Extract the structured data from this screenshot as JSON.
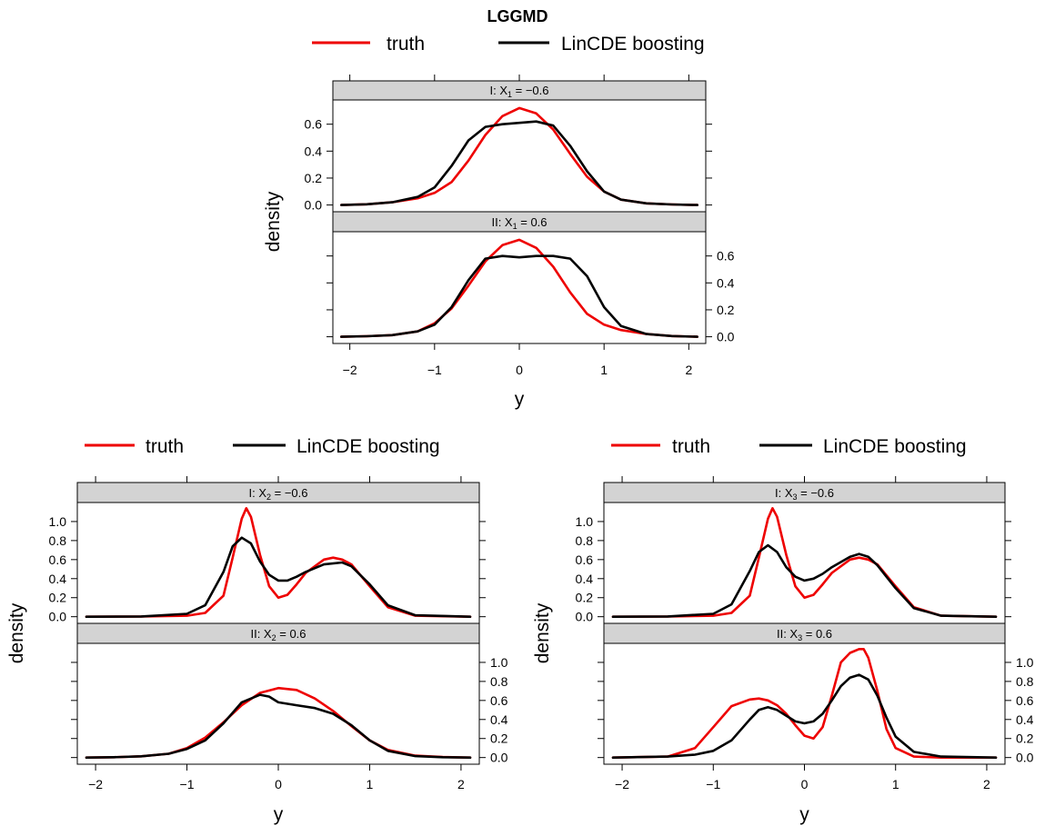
{
  "title": "LGGMD",
  "legend": {
    "truth_label": "truth",
    "lincde_label": "LinCDE boosting"
  },
  "colors": {
    "truth": "#ee0000",
    "lincde": "#000000",
    "strip": "#d3d3d3"
  },
  "chart_data": [
    {
      "type": "line",
      "xlabel": "y",
      "ylabel": "density",
      "xlim": [
        -2.2,
        2.2
      ],
      "x_ticks": [
        -2,
        -1,
        0,
        1,
        2
      ],
      "x_tick_labels": [
        "−2",
        "−1",
        "0",
        "1",
        "2"
      ],
      "y_ticks": [
        0.0,
        0.2,
        0.4,
        0.6
      ],
      "y_tick_labels": [
        "0.0",
        "0.2",
        "0.4",
        "0.6"
      ],
      "ylim": [
        -0.05,
        0.78
      ],
      "legend": [
        "truth",
        "LinCDE boosting"
      ],
      "panels": [
        {
          "strip": {
            "prefix": "I: X",
            "sub": "1",
            "suffix": " = −0.6"
          },
          "series": [
            {
              "name": "truth",
              "x": [
                -2.1,
                -1.8,
                -1.5,
                -1.2,
                -1.0,
                -0.8,
                -0.6,
                -0.4,
                -0.2,
                0.0,
                0.2,
                0.4,
                0.6,
                0.8,
                1.0,
                1.2,
                1.5,
                1.8,
                2.1
              ],
              "y": [
                0.0,
                0.005,
                0.02,
                0.05,
                0.09,
                0.17,
                0.33,
                0.52,
                0.66,
                0.72,
                0.68,
                0.56,
                0.38,
                0.21,
                0.1,
                0.04,
                0.012,
                0.004,
                0.0
              ]
            },
            {
              "name": "LinCDE boosting",
              "x": [
                -2.1,
                -1.8,
                -1.5,
                -1.2,
                -1.0,
                -0.8,
                -0.6,
                -0.4,
                -0.2,
                0.0,
                0.2,
                0.4,
                0.6,
                0.8,
                1.0,
                1.2,
                1.5,
                1.8,
                2.1
              ],
              "y": [
                0.0,
                0.005,
                0.02,
                0.06,
                0.13,
                0.29,
                0.48,
                0.58,
                0.6,
                0.61,
                0.62,
                0.59,
                0.44,
                0.25,
                0.1,
                0.04,
                0.012,
                0.004,
                0.0
              ]
            }
          ]
        },
        {
          "strip": {
            "prefix": "II: X",
            "sub": "1",
            "suffix": " = 0.6"
          },
          "series": [
            {
              "name": "truth",
              "x": [
                -2.1,
                -1.8,
                -1.5,
                -1.2,
                -1.0,
                -0.8,
                -0.6,
                -0.4,
                -0.2,
                0.0,
                0.2,
                0.4,
                0.6,
                0.8,
                1.0,
                1.2,
                1.5,
                1.8,
                2.1
              ],
              "y": [
                0.0,
                0.004,
                0.012,
                0.04,
                0.1,
                0.21,
                0.38,
                0.56,
                0.68,
                0.72,
                0.66,
                0.52,
                0.33,
                0.17,
                0.09,
                0.05,
                0.02,
                0.005,
                0.0
              ]
            },
            {
              "name": "LinCDE boosting",
              "x": [
                -2.1,
                -1.8,
                -1.5,
                -1.2,
                -1.0,
                -0.8,
                -0.6,
                -0.4,
                -0.2,
                0.0,
                0.2,
                0.4,
                0.6,
                0.8,
                1.0,
                1.2,
                1.5,
                1.8,
                2.1
              ],
              "y": [
                0.0,
                0.004,
                0.012,
                0.04,
                0.09,
                0.22,
                0.42,
                0.58,
                0.6,
                0.59,
                0.6,
                0.6,
                0.58,
                0.45,
                0.22,
                0.08,
                0.02,
                0.005,
                0.0
              ]
            }
          ]
        }
      ]
    },
    {
      "type": "line",
      "xlabel": "y",
      "ylabel": "density",
      "xlim": [
        -2.2,
        2.2
      ],
      "x_ticks": [
        -2,
        -1,
        0,
        1,
        2
      ],
      "x_tick_labels": [
        "−2",
        "−1",
        "0",
        "1",
        "2"
      ],
      "y_ticks": [
        0.0,
        0.2,
        0.4,
        0.6,
        0.8,
        1.0
      ],
      "y_tick_labels": [
        "0.0",
        "0.2",
        "0.4",
        "0.6",
        "0.8",
        "1.0"
      ],
      "ylim": [
        -0.07,
        1.2
      ],
      "legend": [
        "truth",
        "LinCDE boosting"
      ],
      "panels": [
        {
          "strip": {
            "prefix": "I: X",
            "sub": "2",
            "suffix": " = −0.6"
          },
          "series": [
            {
              "name": "truth",
              "x": [
                -2.1,
                -1.5,
                -1.0,
                -0.8,
                -0.6,
                -0.5,
                -0.4,
                -0.35,
                -0.3,
                -0.2,
                -0.1,
                0.0,
                0.1,
                0.2,
                0.3,
                0.5,
                0.6,
                0.7,
                0.8,
                1.0,
                1.2,
                1.5,
                2.1
              ],
              "y": [
                0.0,
                0.002,
                0.01,
                0.04,
                0.22,
                0.62,
                1.03,
                1.14,
                1.05,
                0.65,
                0.32,
                0.2,
                0.23,
                0.34,
                0.46,
                0.6,
                0.62,
                0.6,
                0.55,
                0.32,
                0.1,
                0.01,
                0.0
              ]
            },
            {
              "name": "LinCDE boosting",
              "x": [
                -2.1,
                -1.5,
                -1.0,
                -0.8,
                -0.6,
                -0.5,
                -0.4,
                -0.3,
                -0.2,
                -0.1,
                0.0,
                0.1,
                0.2,
                0.3,
                0.5,
                0.7,
                0.8,
                1.0,
                1.2,
                1.5,
                2.1
              ],
              "y": [
                0.0,
                0.003,
                0.03,
                0.12,
                0.47,
                0.74,
                0.83,
                0.77,
                0.58,
                0.44,
                0.38,
                0.38,
                0.42,
                0.47,
                0.55,
                0.57,
                0.53,
                0.34,
                0.12,
                0.015,
                0.0
              ]
            }
          ]
        },
        {
          "strip": {
            "prefix": "II: X",
            "sub": "2",
            "suffix": " = 0.6"
          },
          "series": [
            {
              "name": "truth",
              "x": [
                -2.1,
                -1.8,
                -1.5,
                -1.2,
                -1.0,
                -0.8,
                -0.6,
                -0.4,
                -0.2,
                0.0,
                0.2,
                0.4,
                0.6,
                0.8,
                1.0,
                1.2,
                1.5,
                1.8,
                2.1
              ],
              "y": [
                0.0,
                0.004,
                0.013,
                0.04,
                0.1,
                0.21,
                0.37,
                0.55,
                0.68,
                0.73,
                0.71,
                0.62,
                0.49,
                0.33,
                0.18,
                0.08,
                0.02,
                0.005,
                0.0
              ]
            },
            {
              "name": "LinCDE boosting",
              "x": [
                -2.1,
                -1.8,
                -1.5,
                -1.2,
                -1.0,
                -0.8,
                -0.6,
                -0.4,
                -0.2,
                -0.1,
                0.0,
                0.2,
                0.4,
                0.6,
                0.8,
                1.0,
                1.2,
                1.5,
                1.8,
                2.1
              ],
              "y": [
                0.0,
                0.004,
                0.013,
                0.04,
                0.09,
                0.18,
                0.36,
                0.58,
                0.66,
                0.64,
                0.58,
                0.55,
                0.52,
                0.46,
                0.34,
                0.18,
                0.07,
                0.015,
                0.004,
                0.0
              ]
            }
          ]
        }
      ]
    },
    {
      "type": "line",
      "xlabel": "y",
      "ylabel": "density",
      "xlim": [
        -2.2,
        2.2
      ],
      "x_ticks": [
        -2,
        -1,
        0,
        1,
        2
      ],
      "x_tick_labels": [
        "−2",
        "−1",
        "0",
        "1",
        "2"
      ],
      "y_ticks": [
        0.0,
        0.2,
        0.4,
        0.6,
        0.8,
        1.0
      ],
      "y_tick_labels": [
        "0.0",
        "0.2",
        "0.4",
        "0.6",
        "0.8",
        "1.0"
      ],
      "ylim": [
        -0.07,
        1.2
      ],
      "legend": [
        "truth",
        "LinCDE boosting"
      ],
      "panels": [
        {
          "strip": {
            "prefix": "I: X",
            "sub": "3",
            "suffix": " = −0.6"
          },
          "series": [
            {
              "name": "truth",
              "x": [
                -2.1,
                -1.5,
                -1.0,
                -0.8,
                -0.6,
                -0.5,
                -0.4,
                -0.35,
                -0.3,
                -0.2,
                -0.1,
                0.0,
                0.1,
                0.2,
                0.3,
                0.5,
                0.6,
                0.7,
                0.8,
                1.0,
                1.2,
                1.5,
                2.1
              ],
              "y": [
                0.0,
                0.002,
                0.01,
                0.04,
                0.22,
                0.62,
                1.03,
                1.14,
                1.05,
                0.65,
                0.32,
                0.2,
                0.23,
                0.34,
                0.46,
                0.6,
                0.62,
                0.6,
                0.55,
                0.32,
                0.1,
                0.01,
                0.0
              ]
            },
            {
              "name": "LinCDE boosting",
              "x": [
                -2.1,
                -1.5,
                -1.0,
                -0.8,
                -0.6,
                -0.5,
                -0.4,
                -0.3,
                -0.2,
                -0.1,
                0.0,
                0.1,
                0.2,
                0.3,
                0.5,
                0.6,
                0.7,
                0.8,
                1.0,
                1.2,
                1.5,
                2.1
              ],
              "y": [
                0.0,
                0.003,
                0.03,
                0.13,
                0.48,
                0.68,
                0.75,
                0.68,
                0.52,
                0.42,
                0.38,
                0.4,
                0.45,
                0.52,
                0.63,
                0.66,
                0.63,
                0.54,
                0.3,
                0.09,
                0.01,
                0.0
              ]
            }
          ]
        },
        {
          "strip": {
            "prefix": "II: X",
            "sub": "3",
            "suffix": " = 0.6"
          },
          "series": [
            {
              "name": "truth",
              "x": [
                -2.1,
                -1.5,
                -1.2,
                -1.0,
                -0.8,
                -0.6,
                -0.5,
                -0.4,
                -0.3,
                -0.2,
                -0.1,
                0.0,
                0.1,
                0.2,
                0.3,
                0.4,
                0.5,
                0.6,
                0.65,
                0.7,
                0.8,
                0.9,
                1.0,
                1.2,
                1.5,
                2.1
              ],
              "y": [
                0.0,
                0.01,
                0.1,
                0.32,
                0.54,
                0.61,
                0.62,
                0.6,
                0.55,
                0.46,
                0.34,
                0.23,
                0.2,
                0.32,
                0.65,
                1.0,
                1.1,
                1.14,
                1.14,
                1.05,
                0.7,
                0.3,
                0.1,
                0.01,
                0.0,
                0.0
              ]
            },
            {
              "name": "LinCDE boosting",
              "x": [
                -2.1,
                -1.5,
                -1.2,
                -1.0,
                -0.8,
                -0.6,
                -0.5,
                -0.4,
                -0.3,
                -0.2,
                -0.1,
                0.0,
                0.1,
                0.2,
                0.3,
                0.4,
                0.5,
                0.6,
                0.7,
                0.8,
                0.9,
                1.0,
                1.2,
                1.5,
                2.1
              ],
              "y": [
                0.0,
                0.01,
                0.03,
                0.07,
                0.18,
                0.4,
                0.5,
                0.53,
                0.5,
                0.44,
                0.38,
                0.36,
                0.38,
                0.46,
                0.6,
                0.75,
                0.84,
                0.87,
                0.82,
                0.65,
                0.42,
                0.22,
                0.06,
                0.01,
                0.0
              ]
            }
          ]
        }
      ]
    }
  ]
}
